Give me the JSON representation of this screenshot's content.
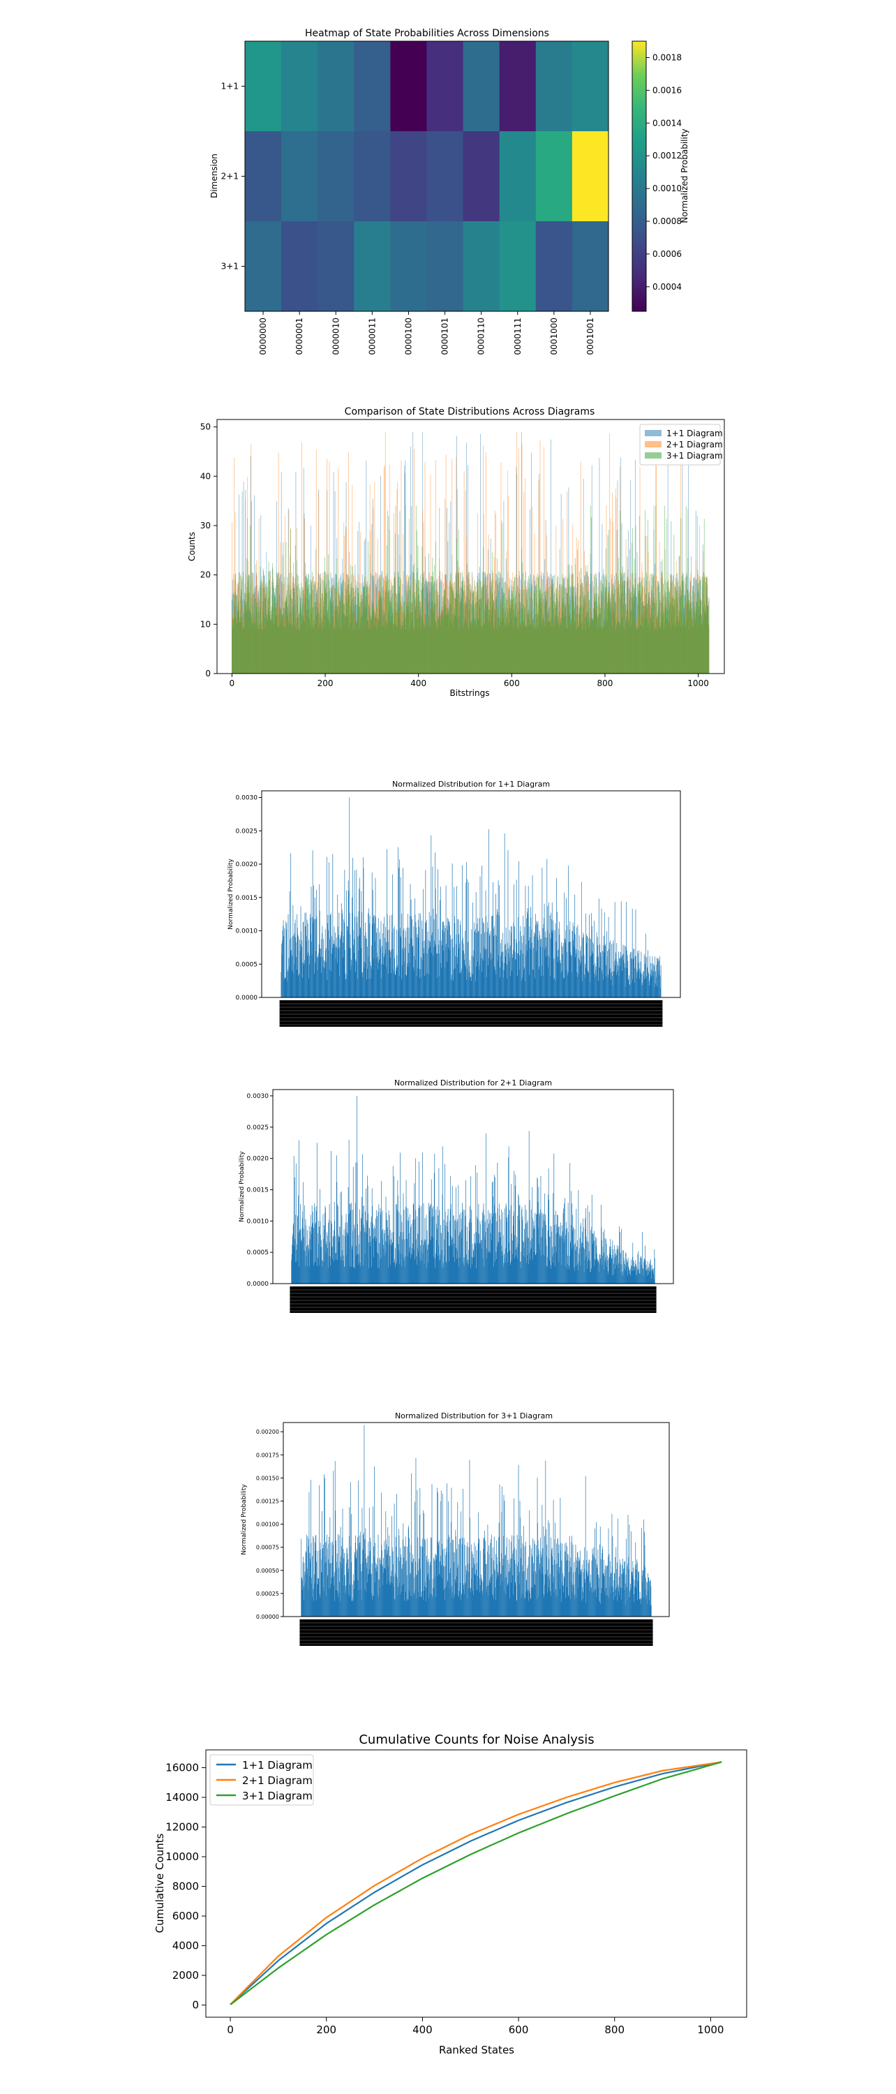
{
  "chart_data": [
    {
      "type": "heatmap",
      "title": "Heatmap of State Probabilities Across Dimensions",
      "ylabel": "Dimension",
      "colorbar_label": "Normalized Probability",
      "colormap": "viridis",
      "rows": [
        "1+1",
        "2+1",
        "3+1"
      ],
      "columns": [
        "0000000",
        "0000001",
        "0000010",
        "0000011",
        "0000100",
        "0000101",
        "0000110",
        "0000111",
        "0001000",
        "0001001"
      ],
      "values": [
        [
          0.00122,
          0.00109,
          0.00098,
          0.00081,
          0.00025,
          0.0005,
          0.00091,
          0.0004,
          0.00103,
          0.00112
        ],
        [
          0.00076,
          0.00092,
          0.00084,
          0.00075,
          0.00063,
          0.00071,
          0.00055,
          0.00113,
          0.00137,
          0.0019
        ],
        [
          0.0009,
          0.00071,
          0.00075,
          0.00104,
          0.00091,
          0.00086,
          0.00108,
          0.00119,
          0.00074,
          0.00087
        ]
      ],
      "vmin": 0.00025,
      "vmax": 0.0019,
      "colorbar_ticks": [
        "0.0004",
        "0.0006",
        "0.0008",
        "0.0010",
        "0.0012",
        "0.0014",
        "0.0016",
        "0.0018"
      ]
    },
    {
      "type": "bar",
      "title": "Comparison of State Distributions Across Diagrams",
      "xlabel": "Bitstrings",
      "ylabel": "Counts",
      "xlim": [
        -32,
        1056
      ],
      "ylim": [
        0,
        51.5
      ],
      "xticks": [
        "0",
        "200",
        "400",
        "600",
        "800",
        "1000"
      ],
      "yticks": [
        "0",
        "10",
        "20",
        "30",
        "40",
        "50"
      ],
      "n_states": 1024,
      "series": [
        {
          "name": "1+1 Diagram",
          "color": "#1f77b4",
          "alpha": 0.5,
          "approx_mean": 16,
          "max": 49
        },
        {
          "name": "2+1 Diagram",
          "color": "#ff7f0e",
          "alpha": 0.5,
          "approx_mean": 16,
          "max": 49
        },
        {
          "name": "3+1 Diagram",
          "color": "#2ca02c",
          "alpha": 0.5,
          "approx_mean": 16,
          "max": 34
        }
      ],
      "legend": "top-right"
    },
    {
      "type": "bar",
      "title": "Normalized Distribution for 1+1 Diagram",
      "ylabel": "Normalized Probability",
      "ylim": [
        0,
        0.0031
      ],
      "yticks": [
        "0.0000",
        "0.0005",
        "0.0010",
        "0.0015",
        "0.0020",
        "0.0025",
        "0.0030"
      ],
      "n_states": 1024,
      "max": 0.003,
      "color": "#1f77b4"
    },
    {
      "type": "bar",
      "title": "Normalized Distribution for 2+1 Diagram",
      "ylabel": "Normalized Probability",
      "ylim": [
        0,
        0.0031
      ],
      "yticks": [
        "0.0000",
        "0.0005",
        "0.0010",
        "0.0015",
        "0.0020",
        "0.0025",
        "0.0030"
      ],
      "n_states": 1024,
      "max": 0.003,
      "color": "#1f77b4"
    },
    {
      "type": "bar",
      "title": "Normalized Distribution for 3+1 Diagram",
      "ylabel": "Normalized Probability",
      "ylim": [
        0,
        0.0021
      ],
      "yticks": [
        "0.00000",
        "0.00025",
        "0.00050",
        "0.00075",
        "0.00100",
        "0.00125",
        "0.00150",
        "0.00175",
        "0.00200"
      ],
      "n_states": 1024,
      "max": 0.00207,
      "color": "#1f77b4"
    },
    {
      "type": "line",
      "title": "Cumulative Counts for Noise Analysis",
      "xlabel": "Ranked States",
      "ylabel": "Cumulative Counts",
      "xlim": [
        -51,
        1075
      ],
      "ylim": [
        -820,
        17200
      ],
      "xticks": [
        "0",
        "200",
        "400",
        "600",
        "800",
        "1000"
      ],
      "yticks": [
        "0",
        "2000",
        "4000",
        "6000",
        "8000",
        "10000",
        "12000",
        "14000",
        "16000"
      ],
      "legend": "top-left",
      "series": [
        {
          "name": "1+1 Diagram",
          "color": "#1f77b4",
          "x": [
            0,
            100,
            200,
            300,
            400,
            500,
            600,
            700,
            800,
            900,
            1023
          ],
          "y": [
            40,
            3000,
            5500,
            7600,
            9450,
            11050,
            12450,
            13650,
            14700,
            15600,
            16384
          ]
        },
        {
          "name": "2+1 Diagram",
          "color": "#ff7f0e",
          "x": [
            0,
            100,
            200,
            300,
            400,
            500,
            600,
            700,
            800,
            900,
            1023
          ],
          "y": [
            45,
            3300,
            5900,
            8050,
            9900,
            11500,
            12850,
            14000,
            15000,
            15800,
            16384
          ]
        },
        {
          "name": "3+1 Diagram",
          "color": "#2ca02c",
          "x": [
            0,
            100,
            200,
            300,
            400,
            500,
            600,
            700,
            800,
            900,
            1023
          ],
          "y": [
            25,
            2500,
            4750,
            6750,
            8550,
            10150,
            11600,
            12900,
            14100,
            15250,
            16384
          ]
        }
      ]
    }
  ]
}
